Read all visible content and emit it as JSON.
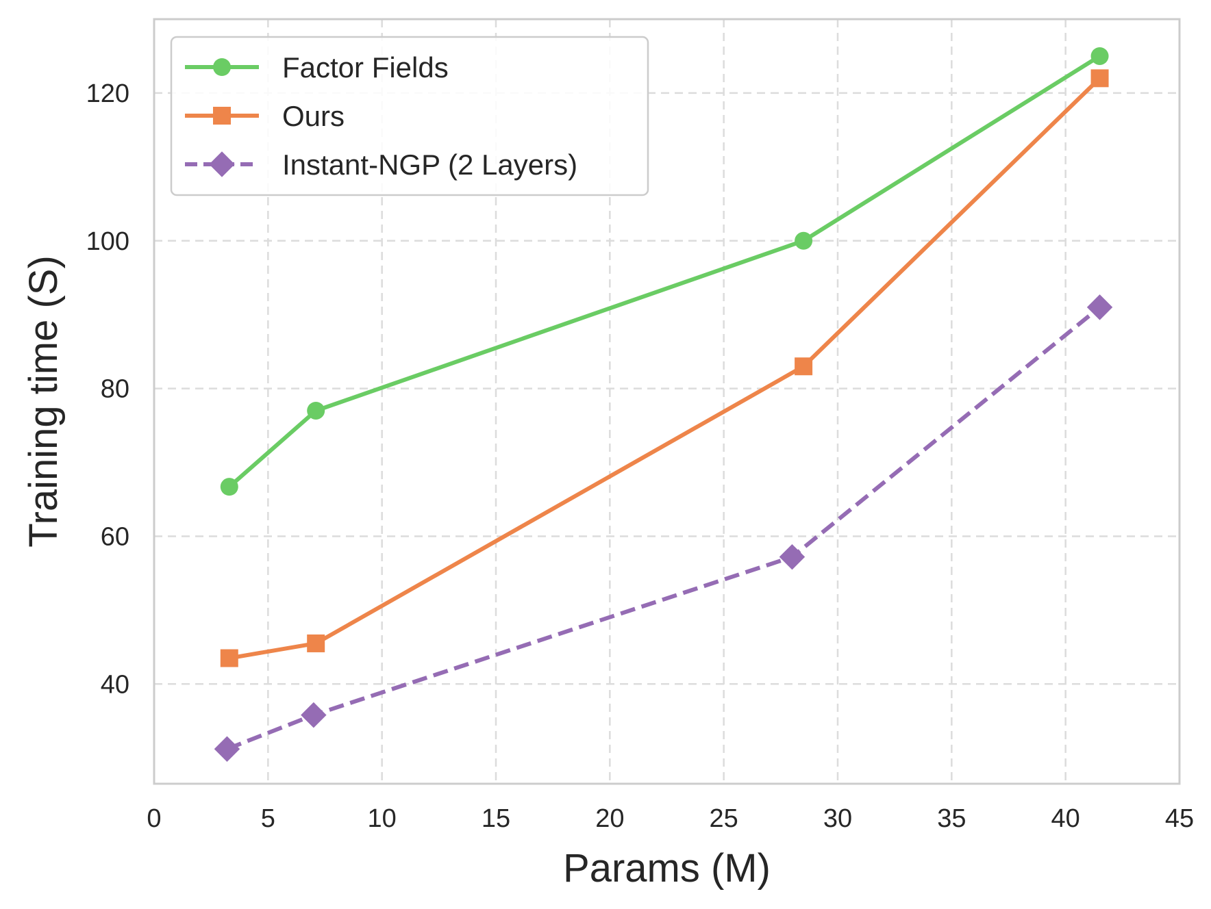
{
  "chart_data": {
    "type": "line",
    "title": "",
    "xlabel": "Params (M)",
    "ylabel": "Training time (S)",
    "xlim": [
      0,
      45
    ],
    "ylim": [
      26.5,
      130
    ],
    "xticks": [
      0,
      5,
      10,
      15,
      20,
      25,
      30,
      35,
      40,
      45
    ],
    "yticks": [
      40,
      60,
      80,
      100,
      120
    ],
    "grid": true,
    "legend_position": "top-left",
    "series": [
      {
        "name": "Factor Fields",
        "color": "#6acc64",
        "marker": "circle",
        "linestyle": "solid",
        "x": [
          3.3,
          7.1,
          28.5,
          41.5
        ],
        "y": [
          66.7,
          77,
          100,
          125
        ]
      },
      {
        "name": "Ours",
        "color": "#ee854a",
        "marker": "square",
        "linestyle": "solid",
        "x": [
          3.3,
          7.1,
          28.5,
          41.5
        ],
        "y": [
          43.5,
          45.5,
          83,
          122
        ]
      },
      {
        "name": "Instant-NGP (2 Layers)",
        "color": "#956cb4",
        "marker": "diamond",
        "linestyle": "dashed",
        "x": [
          3.2,
          7.0,
          28.0,
          41.5
        ],
        "y": [
          31.2,
          35.8,
          57.2,
          91
        ]
      }
    ]
  }
}
